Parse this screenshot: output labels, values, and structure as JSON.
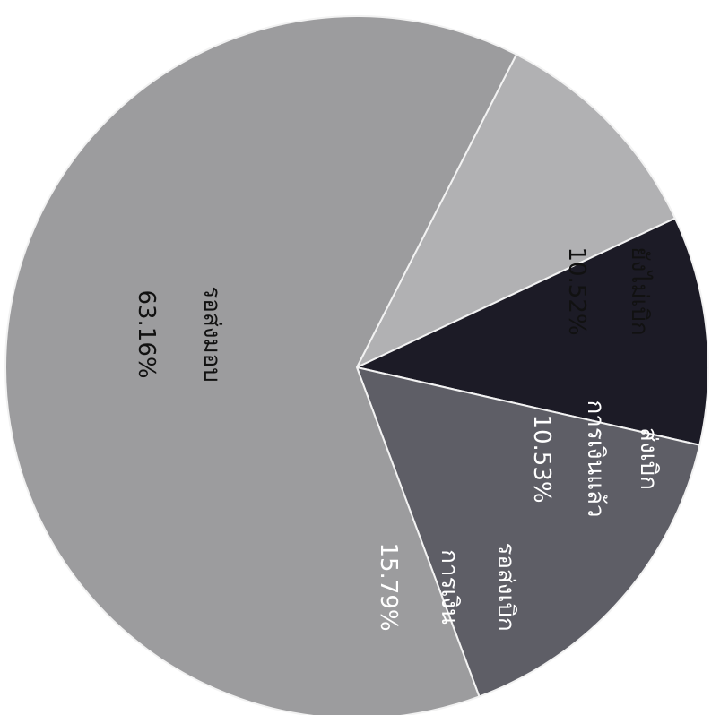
{
  "chart_data": {
    "type": "pie",
    "title": "",
    "slices": [
      {
        "label": "ยังไม่เบิก",
        "percent_text": "10.52%",
        "value": 10.52,
        "color": "#b1b1b3",
        "text_color": "#111111"
      },
      {
        "label_lines": [
          "ส่งเบิก",
          "การเงินแล้ว"
        ],
        "percent_text": "10.53%",
        "value": 10.53,
        "color": "#1c1b26",
        "text_color": "#ffffff"
      },
      {
        "label_lines": [
          "รอส่งเบิก",
          "การเงิน"
        ],
        "percent_text": "15.79%",
        "value": 15.79,
        "color": "#5e5e66",
        "text_color": "#ffffff"
      },
      {
        "label": "รอส่งมอบ",
        "percent_text": "63.16%",
        "value": 63.16,
        "color": "#9c9c9e",
        "text_color": "#111111"
      }
    ]
  }
}
